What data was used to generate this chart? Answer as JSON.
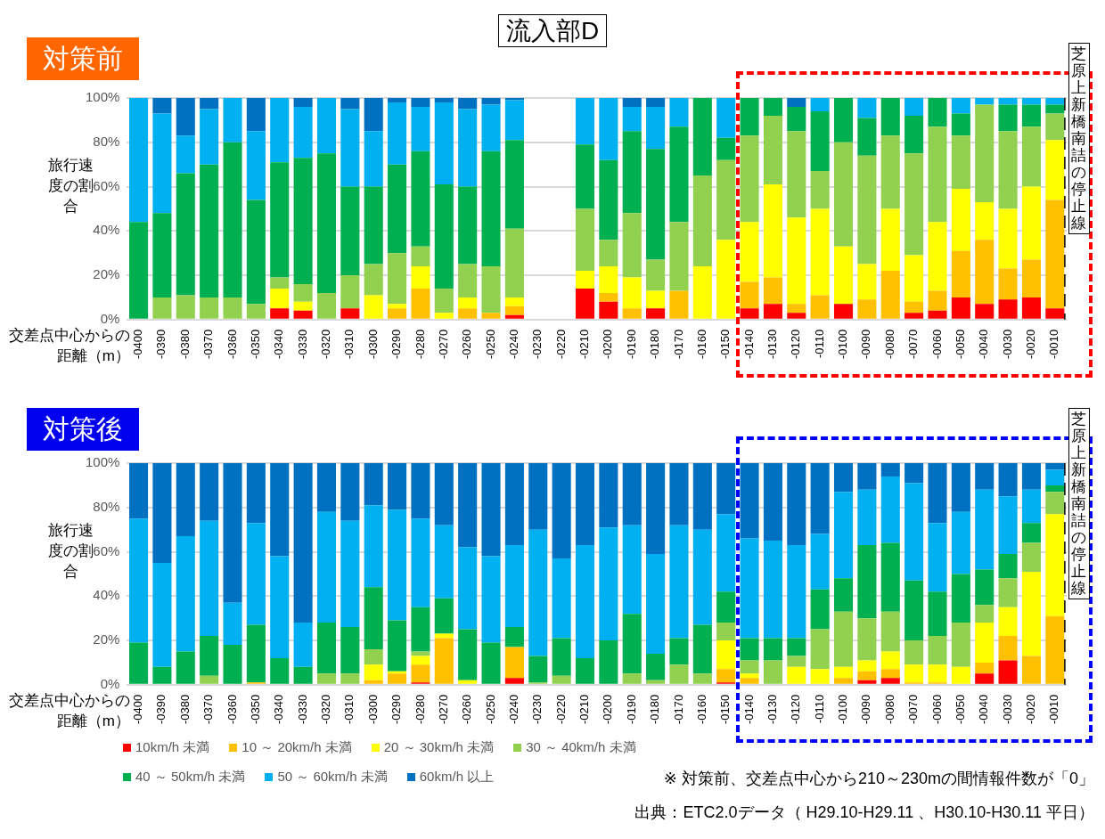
{
  "chart_data": [
    {
      "type": "bar",
      "title": "流入部D",
      "subtitle": "対策前",
      "xlabel": "交差点中心からの距離（m）",
      "ylabel": "旅行速度の割合",
      "stacked": true,
      "grid": "y",
      "categories": [
        "-0400",
        "-0390",
        "-0380",
        "-0370",
        "-0360",
        "-0350",
        "-0340",
        "-0330",
        "-0320",
        "-0310",
        "-0300",
        "-0290",
        "-0280",
        "-0270",
        "-0260",
        "-0250",
        "-0240",
        "-0230",
        "-0220",
        "-0210",
        "-0200",
        "-0190",
        "-0180",
        "-0170",
        "-0160",
        "-0150",
        "-0140",
        "-0130",
        "-0120",
        "-0110",
        "-0100",
        "-0090",
        "-0080",
        "-0070",
        "-0060",
        "-0050",
        "-0040",
        "-0030",
        "-0020",
        "-0010"
      ],
      "ylim": [
        0,
        100
      ],
      "yticks": [
        {
          "value": 0,
          "label": "0%"
        },
        {
          "value": 20,
          "label": "20%"
        },
        {
          "value": 40,
          "label": "40%"
        },
        {
          "value": 60,
          "label": "60%"
        },
        {
          "value": 80,
          "label": "80%"
        },
        {
          "value": 100,
          "label": "100%"
        }
      ],
      "series": [
        {
          "color": "#ff0000",
          "values": [
            0,
            0,
            0,
            0,
            0,
            0,
            5,
            4,
            0,
            5,
            0,
            0,
            0,
            0,
            0,
            0,
            2,
            null,
            null,
            14,
            8,
            0,
            5,
            0,
            0,
            0,
            5,
            7,
            3,
            0,
            7,
            0,
            0,
            3,
            4,
            10,
            7,
            9,
            10,
            5
          ]
        },
        {
          "color": "#ffc000",
          "values": [
            0,
            0,
            0,
            0,
            0,
            0,
            0,
            0,
            0,
            0,
            0,
            5,
            14,
            0,
            5,
            3,
            4,
            null,
            null,
            0,
            4,
            5,
            0,
            13,
            0,
            0,
            12,
            12,
            4,
            11,
            0,
            9,
            22,
            5,
            9,
            21,
            29,
            14,
            17,
            49
          ]
        },
        {
          "color": "#ffff00",
          "values": [
            0,
            0,
            0,
            0,
            0,
            0,
            9,
            4,
            0,
            0,
            11,
            2,
            10,
            3,
            5,
            0,
            4,
            null,
            null,
            8,
            12,
            14,
            8,
            0,
            24,
            36,
            27,
            42,
            39,
            39,
            26,
            16,
            28,
            21,
            31,
            28,
            17,
            27,
            33,
            27
          ]
        },
        {
          "color": "#92d050",
          "values": [
            0,
            10,
            11,
            10,
            10,
            7,
            5,
            8,
            12,
            15,
            14,
            23,
            9,
            11,
            15,
            21,
            31,
            null,
            null,
            28,
            12,
            29,
            14,
            31,
            41,
            36,
            39,
            31,
            39,
            17,
            47,
            49,
            33,
            46,
            43,
            24,
            44,
            35,
            27,
            12
          ]
        },
        {
          "color": "#00b050",
          "values": [
            44,
            38,
            55,
            60,
            70,
            47,
            52,
            57,
            63,
            40,
            35,
            40,
            43,
            47,
            35,
            52,
            40,
            null,
            null,
            29,
            36,
            37,
            50,
            43,
            35,
            10,
            17,
            8,
            11,
            27,
            20,
            17,
            17,
            17,
            13,
            10,
            0,
            12,
            10,
            4
          ]
        },
        {
          "color": "#00b0f0",
          "values": [
            56,
            45,
            17,
            25,
            20,
            31,
            29,
            23,
            25,
            35,
            25,
            28,
            20,
            37,
            35,
            21,
            18,
            null,
            null,
            21,
            28,
            11,
            19,
            13,
            0,
            18,
            0,
            0,
            0,
            6,
            0,
            9,
            0,
            8,
            0,
            7,
            3,
            3,
            3,
            3
          ]
        },
        {
          "color": "#0070c0",
          "values": [
            0,
            7,
            17,
            5,
            0,
            15,
            0,
            4,
            0,
            5,
            15,
            2,
            4,
            2,
            5,
            3,
            1,
            null,
            null,
            0,
            0,
            4,
            4,
            0,
            0,
            0,
            0,
            0,
            4,
            0,
            0,
            0,
            0,
            0,
            0,
            0,
            0,
            0,
            0,
            0
          ]
        }
      ],
      "ref_lines": [
        {
          "axis": "x",
          "value": "-0010",
          "label": "芝原上新橋南詰の停止線",
          "color": "#000000",
          "line_style": "dashed"
        }
      ]
    },
    {
      "type": "bar",
      "title": "対策後",
      "xlabel": "交差点中心からの距離（m）",
      "ylabel": "旅行速度の割合",
      "stacked": true,
      "grid": "y",
      "legend": "bottom",
      "categories": [
        "-0400",
        "-0390",
        "-0380",
        "-0370",
        "-0360",
        "-0350",
        "-0340",
        "-0330",
        "-0320",
        "-0310",
        "-0300",
        "-0290",
        "-0280",
        "-0270",
        "-0260",
        "-0250",
        "-0240",
        "-0230",
        "-0220",
        "-0210",
        "-0200",
        "-0190",
        "-0180",
        "-0170",
        "-0160",
        "-0150",
        "-0140",
        "-0130",
        "-0120",
        "-0110",
        "-0100",
        "-0090",
        "-0080",
        "-0070",
        "-0060",
        "-0050",
        "-0040",
        "-0030",
        "-0020",
        "-0010"
      ],
      "ylim": [
        0,
        100
      ],
      "yticks": [
        {
          "value": 0,
          "label": "0%"
        },
        {
          "value": 20,
          "label": "20%"
        },
        {
          "value": 40,
          "label": "40%"
        },
        {
          "value": 60,
          "label": "60%"
        },
        {
          "value": 80,
          "label": "80%"
        },
        {
          "value": 100,
          "label": "100%"
        }
      ],
      "series": [
        {
          "name": "10km/h 未満",
          "color": "#ff0000",
          "values": [
            0,
            0,
            0,
            0,
            0,
            0,
            0,
            0,
            0,
            0,
            0,
            0,
            1,
            0,
            0,
            0,
            3,
            0,
            0,
            0,
            0,
            0,
            0,
            0,
            0,
            1,
            0,
            0,
            0,
            0,
            0,
            2,
            3,
            0,
            0,
            0,
            5,
            11,
            0,
            0
          ]
        },
        {
          "name": "10 ～ 20km/h 未満",
          "color": "#ffc000",
          "values": [
            0,
            0,
            0,
            0,
            0,
            1,
            0,
            0,
            0,
            0,
            2,
            5,
            8,
            21,
            0,
            0,
            14,
            0,
            0,
            0,
            0,
            0,
            0,
            0,
            0,
            6,
            3,
            0,
            0,
            0,
            3,
            4,
            4,
            1,
            1,
            0,
            5,
            11,
            13,
            31
          ]
        },
        {
          "name": "20 ～ 30km/h 未満",
          "color": "#ffff00",
          "values": [
            0,
            0,
            0,
            0,
            0,
            0,
            0,
            0,
            0,
            0,
            7,
            1,
            4,
            2,
            2,
            0,
            0,
            0,
            0,
            0,
            0,
            0,
            0,
            0,
            0,
            13,
            2,
            0,
            8,
            7,
            5,
            5,
            8,
            8,
            8,
            8,
            18,
            13,
            38,
            46
          ]
        },
        {
          "name": "30 ～ 40km/h 未満",
          "color": "#92d050",
          "values": [
            0,
            0,
            0,
            4,
            0,
            0,
            0,
            0,
            5,
            5,
            7,
            0,
            2,
            0,
            0,
            0,
            0,
            1,
            4,
            0,
            0,
            5,
            2,
            9,
            5,
            8,
            6,
            11,
            5,
            18,
            25,
            19,
            18,
            11,
            13,
            20,
            8,
            13,
            13,
            10
          ]
        },
        {
          "name": "40 ～ 50km/h 未満",
          "color": "#00b050",
          "values": [
            19,
            8,
            15,
            18,
            18,
            26,
            12,
            8,
            23,
            21,
            28,
            23,
            20,
            16,
            23,
            19,
            9,
            12,
            17,
            12,
            20,
            27,
            12,
            12,
            22,
            14,
            10,
            10,
            8,
            18,
            15,
            33,
            31,
            27,
            20,
            22,
            16,
            11,
            9,
            3
          ]
        },
        {
          "name": "50 ～ 60km/h 未満",
          "color": "#00b0f0",
          "values": [
            56,
            47,
            52,
            52,
            19,
            46,
            46,
            20,
            50,
            48,
            37,
            50,
            40,
            33,
            37,
            39,
            37,
            57,
            36,
            51,
            51,
            40,
            45,
            51,
            43,
            35,
            45,
            44,
            42,
            25,
            39,
            25,
            30,
            44,
            31,
            28,
            36,
            26,
            15,
            7
          ]
        },
        {
          "name": "60km/h 以上",
          "color": "#0070c0",
          "values": [
            25,
            45,
            33,
            26,
            63,
            27,
            42,
            72,
            22,
            26,
            19,
            21,
            25,
            28,
            38,
            42,
            37,
            30,
            43,
            37,
            29,
            28,
            41,
            28,
            30,
            23,
            34,
            35,
            37,
            32,
            13,
            12,
            6,
            9,
            27,
            22,
            12,
            15,
            12,
            3
          ]
        }
      ],
      "ref_lines": [
        {
          "axis": "x",
          "value": "-0010",
          "label": "芝原上新橋南詰の停止線",
          "color": "#000000",
          "line_style": "dashed"
        }
      ],
      "annotations": [
        "※ 対策前、交差点中心から210～230mの間情報件数が「0」",
        "出典：ETC2.0データ（ H29.10-H29.11 、H30.10-H30.11 平日）"
      ]
    }
  ]
}
